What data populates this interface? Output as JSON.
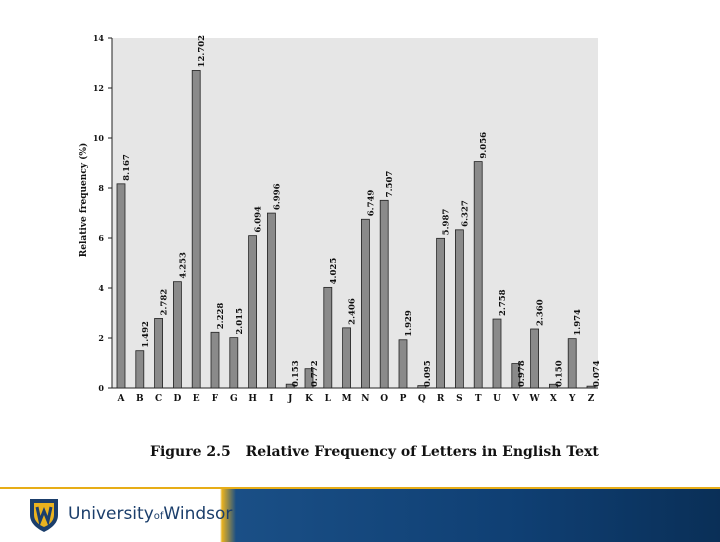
{
  "chart_data": {
    "type": "bar",
    "title": "",
    "ylabel": "Relative frequency (%)",
    "xlabel": "",
    "ylim": [
      0,
      14
    ],
    "yticks": [
      "0",
      "2",
      "4",
      "6",
      "8",
      "10",
      "12",
      "14"
    ],
    "grid": false,
    "categories": [
      "A",
      "B",
      "C",
      "D",
      "E",
      "F",
      "G",
      "H",
      "I",
      "J",
      "K",
      "L",
      "M",
      "N",
      "O",
      "P",
      "Q",
      "R",
      "S",
      "T",
      "U",
      "V",
      "W",
      "X",
      "Y",
      "Z"
    ],
    "values": [
      8.167,
      1.492,
      2.782,
      4.253,
      12.702,
      2.228,
      2.015,
      6.094,
      6.996,
      0.153,
      0.772,
      4.025,
      2.406,
      6.749,
      7.507,
      1.929,
      0.095,
      5.987,
      6.327,
      9.056,
      2.758,
      0.978,
      2.36,
      0.15,
      1.974,
      0.074
    ],
    "value_labels": [
      "8.167",
      "1.492",
      "2.782",
      "4.253",
      "12.702",
      "2.228",
      "2.015",
      "6.094",
      "6.996",
      "0.153",
      "0.772",
      "4.025",
      "2.406",
      "6.749",
      "7.507",
      "1.929",
      "0.095",
      "5.987",
      "6.327",
      "9.056",
      "2.758",
      "0.978",
      "2.360",
      "0.150",
      "1.974",
      "0.074"
    ],
    "colors": {
      "bar": "#8a8a8a",
      "bar_edge": "#222222",
      "plot_bg": "#e6e6e6",
      "text": "#111111"
    }
  },
  "caption": {
    "number": "Figure 2.5",
    "text": "Relative Frequency of Letters in English Text"
  },
  "footer": {
    "university_prefix": "University",
    "university_of": "of",
    "university_suffix": "Windsor",
    "crest_icon": "shield-crest-icon",
    "colors": {
      "navy": "#1a4f86",
      "gold": "#e9b21f"
    }
  }
}
